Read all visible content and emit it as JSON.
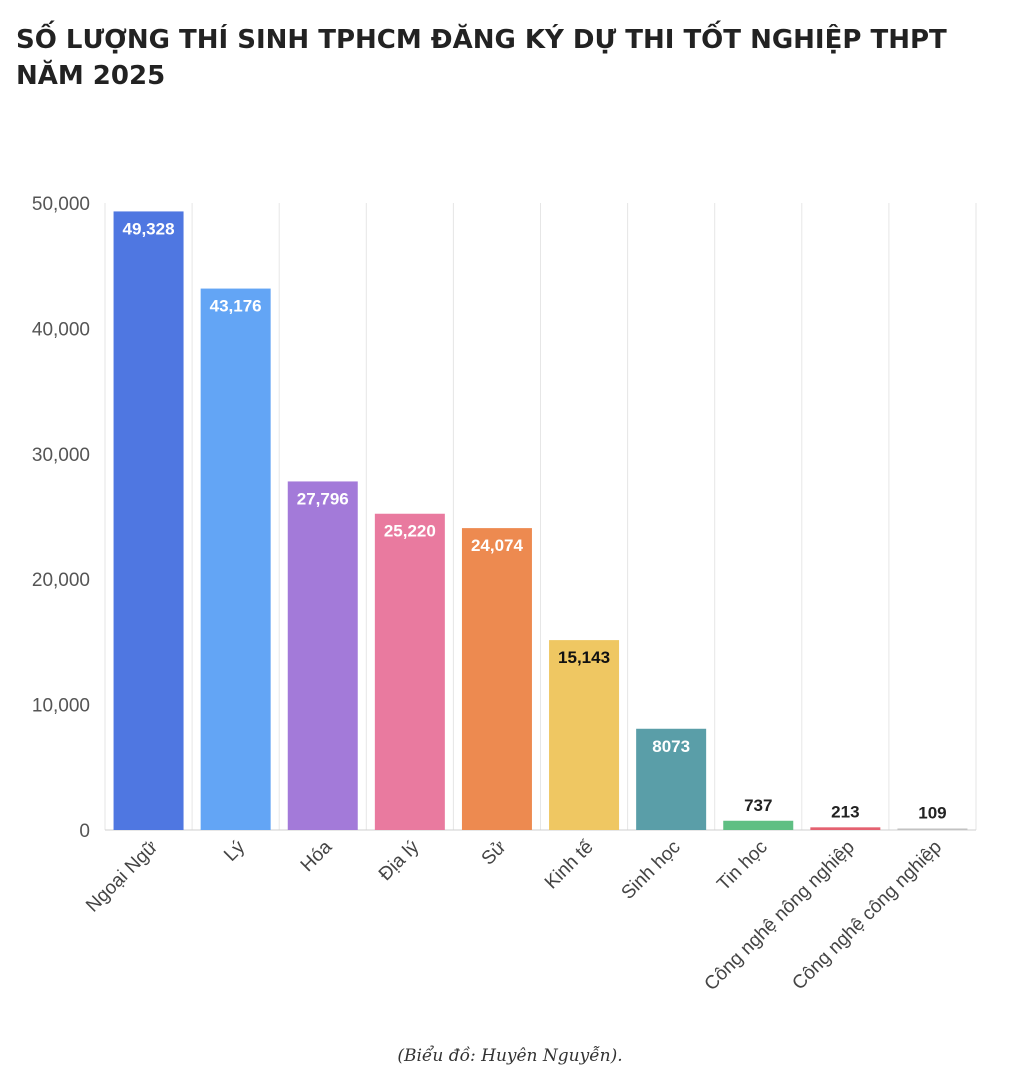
{
  "title": "SỐ LƯỢNG THÍ SINH TPHCM ĐĂNG KÝ DỰ THI TỐT NGHIỆP THPT NĂM 2025",
  "caption": "(Biểu đồ: Huyên Nguyễn).",
  "chart_data": {
    "type": "bar",
    "title": "SỐ LƯỢNG THÍ SINH TPHCM ĐĂNG KÝ DỰ THI TỐT NGHIỆP THPT NĂM 2025",
    "xlabel": "",
    "ylabel": "",
    "ylim": [
      0,
      50000
    ],
    "yticks": [
      0,
      10000,
      20000,
      30000,
      40000,
      50000
    ],
    "ytick_labels": [
      "0",
      "10,000",
      "20,000",
      "30,000",
      "40,000",
      "50,000"
    ],
    "grid": "vertical",
    "legend": "none",
    "categories": [
      "Ngoại Ngữ",
      "Lý",
      "Hóa",
      "Địa lý",
      "Sử",
      "Kinh tế",
      "Sinh học",
      "Tin học",
      "Công nghệ nông nghiệp",
      "Công nghệ công nghiệp"
    ],
    "values": [
      49328,
      43176,
      27796,
      25220,
      24074,
      15143,
      8073,
      737,
      213,
      109
    ],
    "value_labels": [
      "49,328",
      "43,176",
      "27,796",
      "25,220",
      "24,074",
      "15,143",
      "8073",
      "737",
      "213",
      "109"
    ],
    "colors": [
      "#4f77e1",
      "#63a5f5",
      "#a37ad9",
      "#e97a9f",
      "#ed8a50",
      "#efc762",
      "#5a9ea8",
      "#5fbf83",
      "#e46170",
      "#c2c2c2"
    ]
  }
}
